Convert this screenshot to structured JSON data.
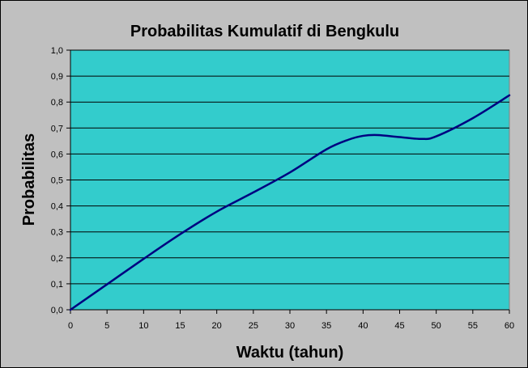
{
  "chart_data": {
    "type": "line",
    "title": "Probabilitas Kumulatif di  Bengkulu",
    "xlabel": "Waktu (tahun)",
    "ylabel": "Probabilitas",
    "xlim": [
      0,
      60
    ],
    "ylim": [
      0,
      1
    ],
    "x_ticks": [
      0,
      5,
      10,
      15,
      20,
      25,
      30,
      35,
      40,
      45,
      50,
      55,
      60
    ],
    "y_ticks": [
      "0,0",
      "0,1",
      "0,2",
      "0,3",
      "0,4",
      "0,5",
      "0,6",
      "0,7",
      "0,8",
      "0,9",
      "1,0"
    ],
    "grid": "horizontal",
    "legend": "none",
    "series": [
      {
        "x": [
          0,
          5,
          10,
          15,
          20,
          25,
          30,
          35,
          38,
          40,
          42,
          45,
          48,
          50,
          55,
          60
        ],
        "y": [
          0.0,
          0.098,
          0.196,
          0.291,
          0.378,
          0.452,
          0.529,
          0.618,
          0.655,
          0.67,
          0.673,
          0.665,
          0.658,
          0.668,
          0.738,
          0.826
        ]
      }
    ],
    "colors": {
      "background": "#c0c0c0",
      "plot_area": "#33cccc",
      "line": "#000080",
      "grid": "#000000"
    }
  }
}
